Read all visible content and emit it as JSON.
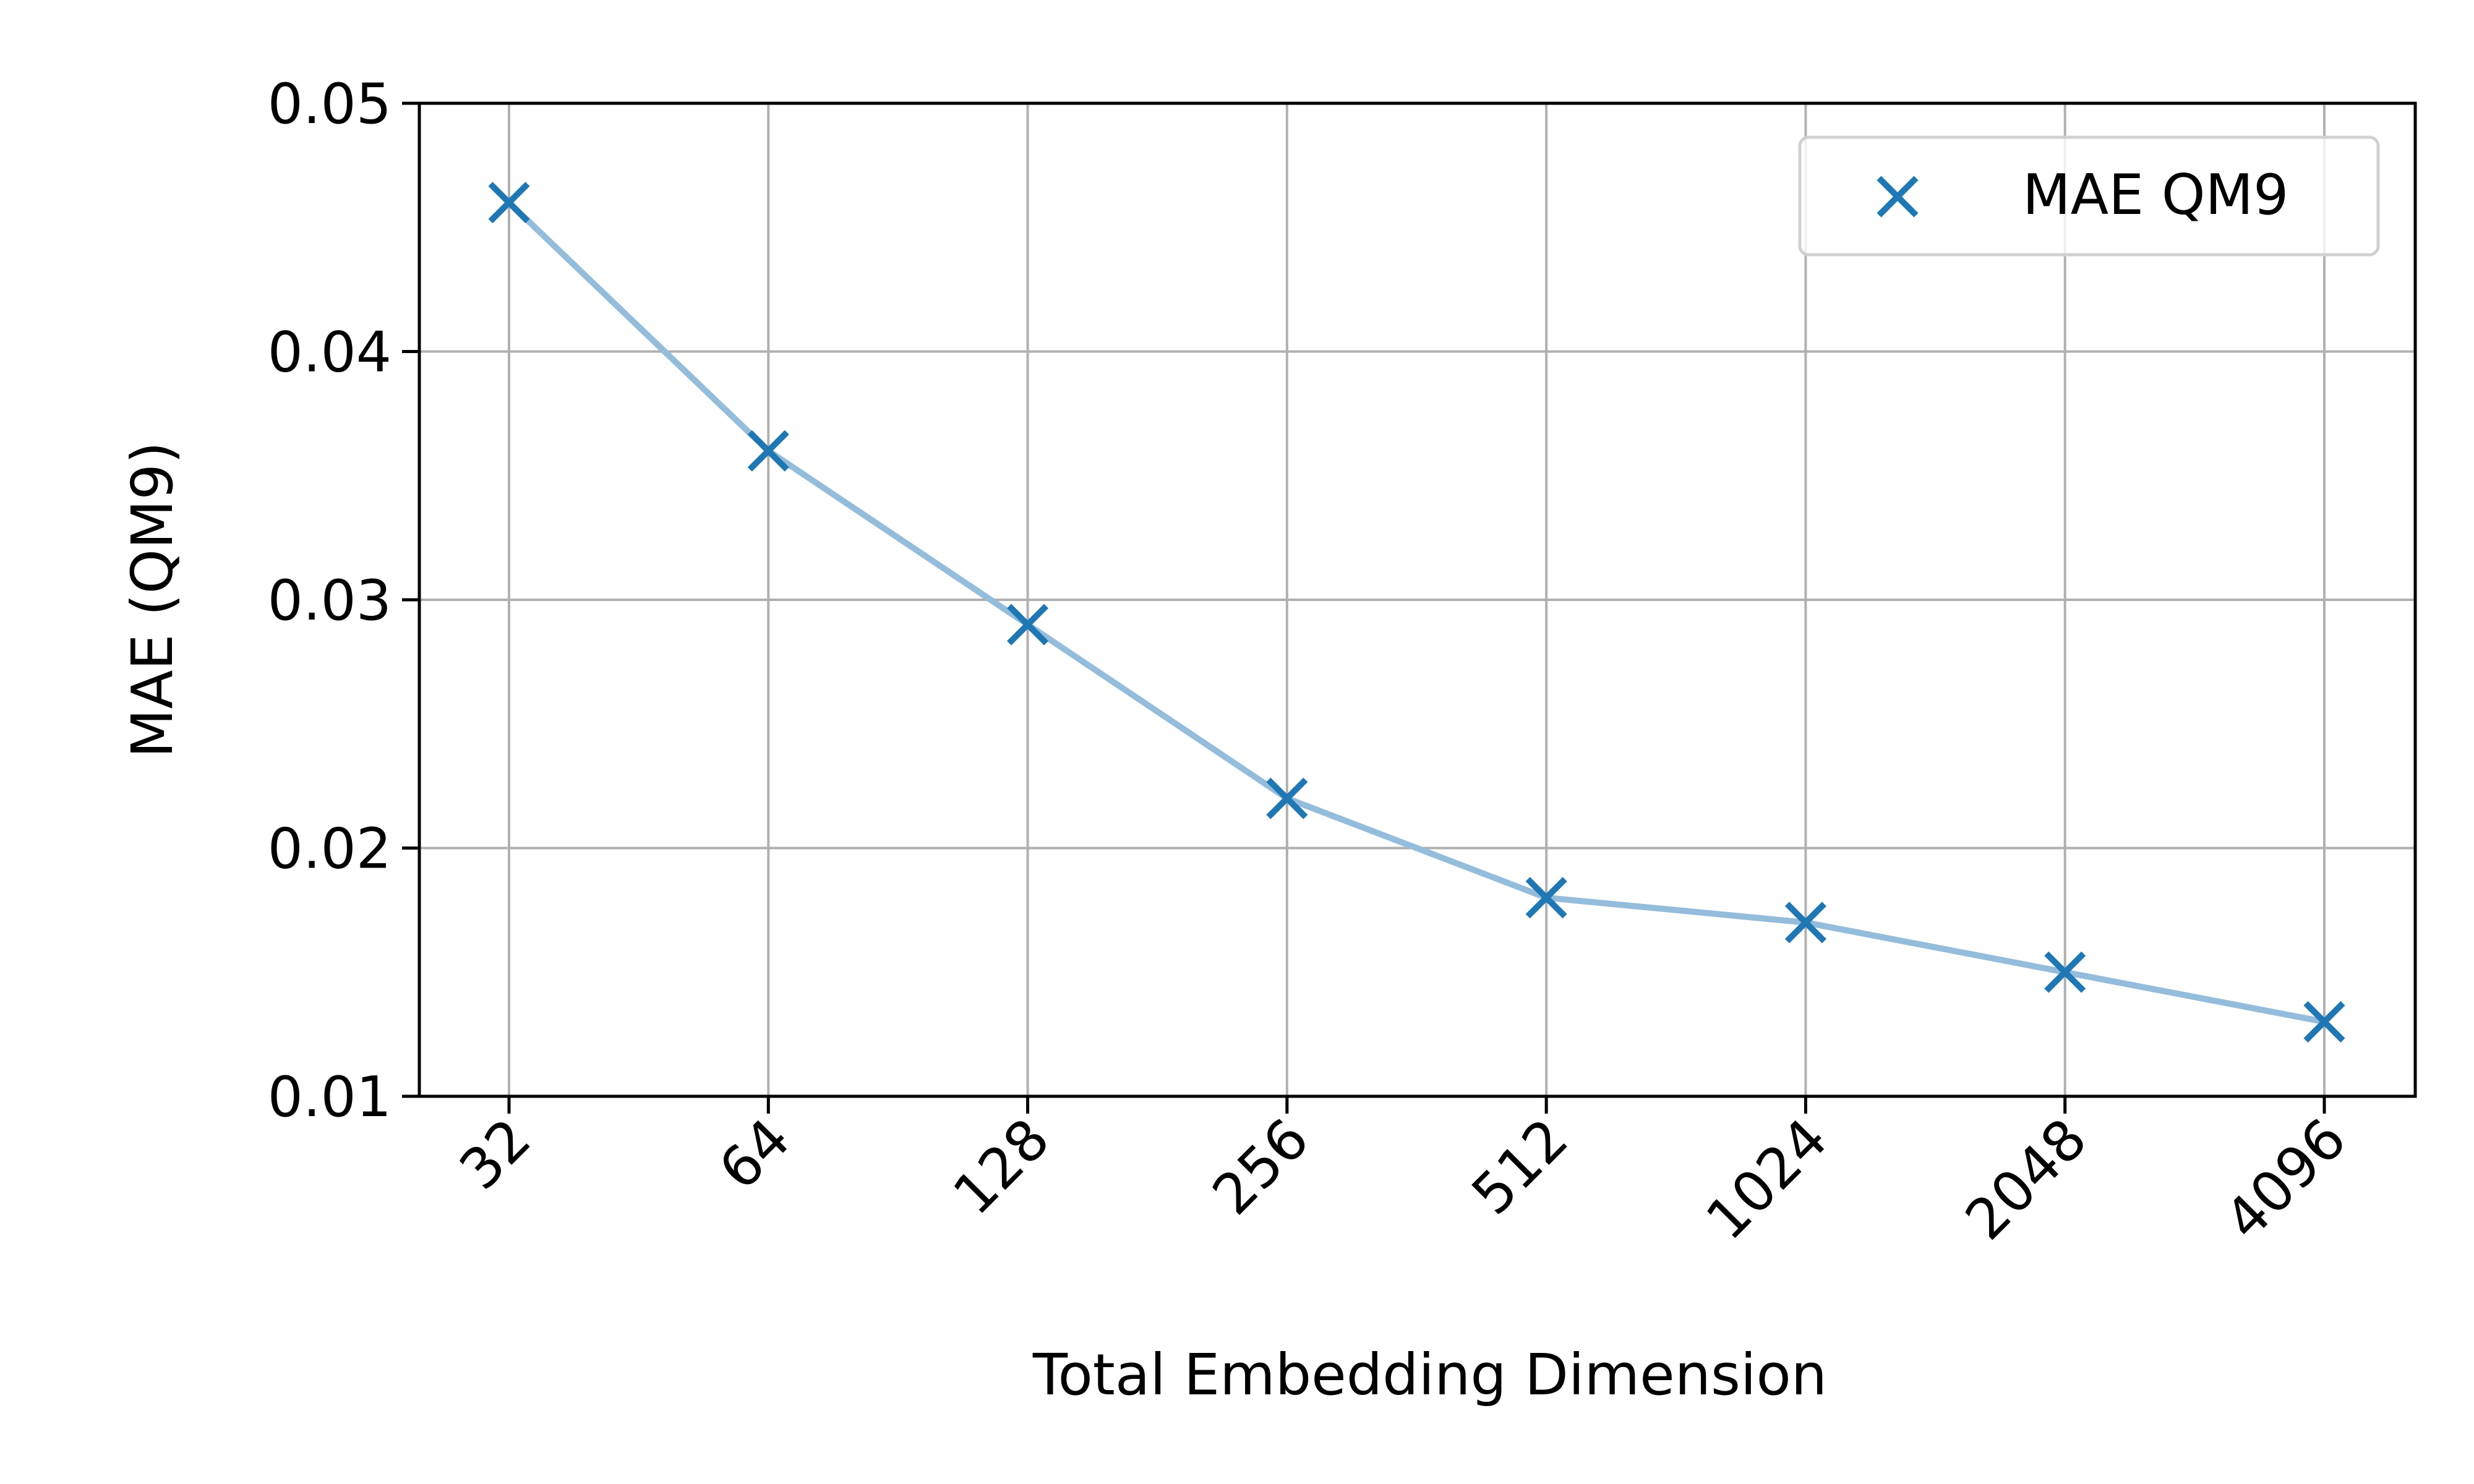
{
  "chart_data": {
    "type": "line",
    "x_categories": [
      "32",
      "64",
      "128",
      "256",
      "512",
      "1024",
      "2048",
      "4096"
    ],
    "series": [
      {
        "name": "MAE QM9",
        "marker": "x",
        "values": [
          0.046,
          0.036,
          0.029,
          0.022,
          0.018,
          0.017,
          0.015,
          0.013
        ]
      }
    ],
    "xlabel": "Total Embedding Dimension",
    "ylabel": "MAE (QM9)",
    "ylim": [
      0.01,
      0.05
    ],
    "yticks": [
      "0.01",
      "0.02",
      "0.03",
      "0.04",
      "0.05"
    ],
    "ytick_values": [
      0.01,
      0.02,
      0.03,
      0.04,
      0.05
    ],
    "grid": true,
    "legend": "top-right",
    "colors": {
      "marker": "#1f77b4",
      "line": "#94bcdb",
      "grid": "#b0b0b0",
      "axes": "#000000"
    }
  }
}
